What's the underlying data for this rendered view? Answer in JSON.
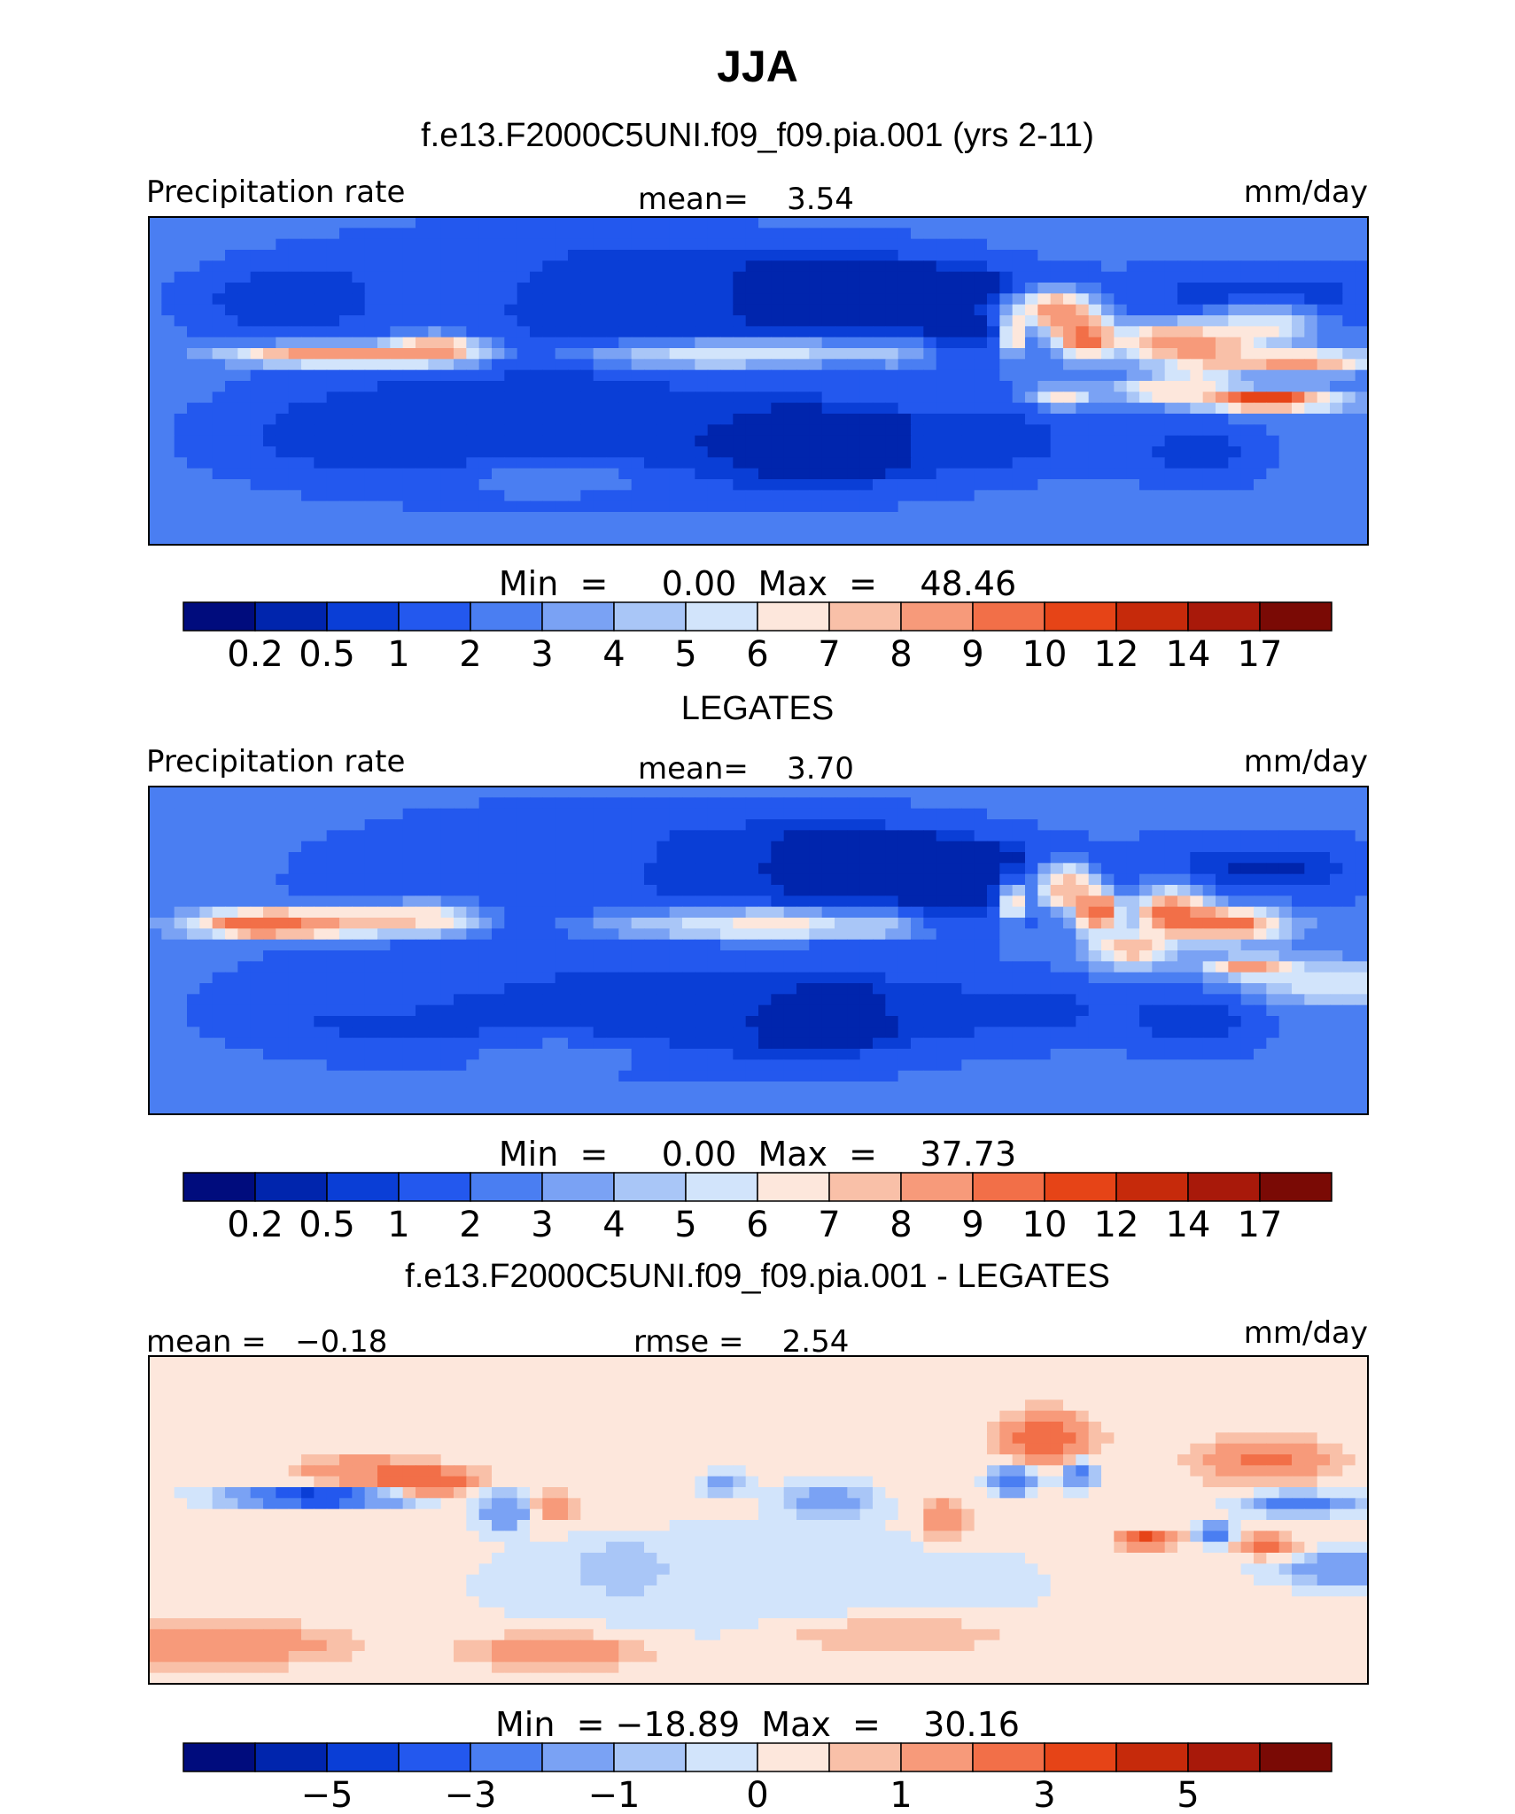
{
  "figure": {
    "title": "JJA",
    "subtitle": "f.e13.F2000C5UNI.f09_f09.pia.001 (yrs 2-11)"
  },
  "chart_data": [
    {
      "type": "heatmap",
      "panel_title": "",
      "left_label": "Precipitation rate",
      "center_label": "mean=    3.54",
      "units": "mm/day",
      "stats": "Min  =     0.00  Max  =    48.46",
      "levels": [
        "0.2",
        "0.5",
        "1",
        "2",
        "3",
        "4",
        "5",
        "6",
        "7",
        "8",
        "9",
        "10",
        "12",
        "14",
        "17"
      ],
      "colors": [
        "#000c7d",
        "#0025ad",
        "#0a3ed6",
        "#2358ee",
        "#4a7ef2",
        "#7aa2f4",
        "#a9c6f7",
        "#d2e4fb",
        "#fde7dc",
        "#f9c0a8",
        "#f79a7a",
        "#f26f48",
        "#e64417",
        "#c62a0b",
        "#a8190a",
        "#7a0a05"
      ],
      "fields": [
        {
          "v": 1.5,
          "lon": -80,
          "lat": 22,
          "sx": 70,
          "sy": 26
        },
        {
          "v": 0.3,
          "lon": -20,
          "lat": 22,
          "sx": 90,
          "sy": 20
        },
        {
          "v": 0.1,
          "lon": 30,
          "lat": 25,
          "sx": 40,
          "sy": 12
        },
        {
          "v": 0.4,
          "lon": 60,
          "lat": 22,
          "sx": 26,
          "sy": 10
        },
        {
          "v": 0.3,
          "lon": 150,
          "lat": 25,
          "sx": 40,
          "sy": 10
        },
        {
          "v": 0.6,
          "lon": -140,
          "lat": 25,
          "sx": 25,
          "sy": 10
        },
        {
          "v": 0.5,
          "lon": -40,
          "lat": -20,
          "sx": 100,
          "sy": 18
        },
        {
          "v": 0.3,
          "lon": 20,
          "lat": -20,
          "sx": 30,
          "sy": 12
        },
        {
          "v": 0.8,
          "lon": 70,
          "lat": -18,
          "sx": 25,
          "sy": 10
        },
        {
          "v": 0.5,
          "lon": 130,
          "lat": -22,
          "sx": 20,
          "sy": 10
        },
        {
          "v": 0.6,
          "lon": -110,
          "lat": -15,
          "sx": 40,
          "sy": 12
        },
        {
          "v": 10,
          "lon": -20,
          "lat": 8,
          "sx": 28,
          "sy": 3.5
        },
        {
          "v": 8,
          "lon": 10,
          "lat": 9,
          "sx": 25,
          "sy": 3.5
        },
        {
          "v": 6,
          "lon": 40,
          "lat": 9,
          "sx": 10,
          "sy": 4
        },
        {
          "v": 15,
          "lon": 85,
          "lat": 22,
          "sx": 10,
          "sy": 5
        },
        {
          "v": 13,
          "lon": 75,
          "lat": 15,
          "sx": 3,
          "sy": 6
        },
        {
          "v": 12,
          "lon": 95,
          "lat": 15,
          "sx": 8,
          "sy": 7
        },
        {
          "v": 10,
          "lon": 125,
          "lat": 12,
          "sx": 20,
          "sy": 6
        },
        {
          "v": 9,
          "lon": 150,
          "lat": 18,
          "sx": 14,
          "sy": 5
        },
        {
          "v": 14,
          "lon": -120,
          "lat": 8,
          "sx": 30,
          "sy": 3
        },
        {
          "v": 16,
          "lon": -95,
          "lat": 10,
          "sx": 12,
          "sy": 4
        },
        {
          "v": 9,
          "lon": 160,
          "lat": 6,
          "sx": 25,
          "sy": 3
        },
        {
          "v": 12,
          "lon": 150,
          "lat": -6,
          "sx": 20,
          "sy": 3
        },
        {
          "v": 7,
          "lon": 115,
          "lat": -3,
          "sx": 10,
          "sy": 3
        },
        {
          "v": 8,
          "lon": 90,
          "lat": -5,
          "sx": 8,
          "sy": 3
        },
        {
          "v": 6,
          "lon": 130,
          "lat": 0,
          "sx": 12,
          "sy": 5
        },
        {
          "v": 4,
          "lon": -60,
          "lat": -30,
          "sx": 30,
          "sy": 5
        }
      ]
    },
    {
      "type": "heatmap",
      "panel_title": "LEGATES",
      "left_label": "Precipitation rate",
      "center_label": "mean=    3.70",
      "units": "mm/day",
      "stats": "Min  =     0.00  Max  =    37.73",
      "levels": [
        "0.2",
        "0.5",
        "1",
        "2",
        "3",
        "4",
        "5",
        "6",
        "7",
        "8",
        "9",
        "10",
        "12",
        "14",
        "17"
      ],
      "colors": [
        "#000c7d",
        "#0025ad",
        "#0a3ed6",
        "#2358ee",
        "#4a7ef2",
        "#7aa2f4",
        "#a9c6f7",
        "#d2e4fb",
        "#fde7dc",
        "#f9c0a8",
        "#f79a7a",
        "#f26f48",
        "#e64417",
        "#c62a0b",
        "#a8190a",
        "#7a0a05"
      ],
      "fields": [
        {
          "v": 2.2,
          "lon": -80,
          "lat": 22,
          "sx": 70,
          "sy": 26
        },
        {
          "v": 0.3,
          "lon": -20,
          "lat": 22,
          "sx": 90,
          "sy": 20
        },
        {
          "v": 0.1,
          "lon": 30,
          "lat": 25,
          "sx": 40,
          "sy": 12
        },
        {
          "v": 0.5,
          "lon": 60,
          "lat": 22,
          "sx": 26,
          "sy": 10
        },
        {
          "v": 0.4,
          "lon": 150,
          "lat": 25,
          "sx": 40,
          "sy": 10
        },
        {
          "v": 0.6,
          "lon": -40,
          "lat": -20,
          "sx": 100,
          "sy": 18
        },
        {
          "v": 0.3,
          "lon": 20,
          "lat": -20,
          "sx": 30,
          "sy": 12
        },
        {
          "v": 1.0,
          "lon": 80,
          "lat": -18,
          "sx": 30,
          "sy": 10
        },
        {
          "v": 0.5,
          "lon": 130,
          "lat": -22,
          "sx": 20,
          "sy": 10
        },
        {
          "v": 1.2,
          "lon": -110,
          "lat": -15,
          "sx": 40,
          "sy": 12
        },
        {
          "v": 9,
          "lon": -20,
          "lat": 8,
          "sx": 28,
          "sy": 4
        },
        {
          "v": 11,
          "lon": 5,
          "lat": 8,
          "sx": 18,
          "sy": 4
        },
        {
          "v": 7,
          "lon": 35,
          "lat": 8,
          "sx": 12,
          "sy": 4
        },
        {
          "v": 13,
          "lon": 75,
          "lat": 15,
          "sx": 3,
          "sy": 5
        },
        {
          "v": 12,
          "lon": 90,
          "lat": 20,
          "sx": 8,
          "sy": 6
        },
        {
          "v": 12,
          "lon": 100,
          "lat": 12,
          "sx": 6,
          "sy": 6
        },
        {
          "v": 11,
          "lon": 122,
          "lat": 12,
          "sx": 10,
          "sy": 7
        },
        {
          "v": 10,
          "lon": 140,
          "lat": 8,
          "sx": 15,
          "sy": 5
        },
        {
          "v": 13,
          "lon": -145,
          "lat": 8,
          "sx": 20,
          "sy": 4
        },
        {
          "v": 12,
          "lon": -115,
          "lat": 9,
          "sx": 20,
          "sy": 4
        },
        {
          "v": 11,
          "lon": -95,
          "lat": 10,
          "sx": 12,
          "sy": 4
        },
        {
          "v": 9,
          "lon": 145,
          "lat": -5,
          "sx": 12,
          "sy": 3
        },
        {
          "v": 8,
          "lon": 110,
          "lat": 0,
          "sx": 12,
          "sy": 5
        },
        {
          "v": 6,
          "lon": 170,
          "lat": -10,
          "sx": 25,
          "sy": 6
        },
        {
          "v": 4,
          "lon": -60,
          "lat": -32,
          "sx": 25,
          "sy": 5
        }
      ]
    },
    {
      "type": "heatmap",
      "panel_title": "f.e13.F2000C5UNI.f09_f09.pia.001 - LEGATES",
      "left_label": "mean =   −0.18",
      "center_label": "rmse =    2.54",
      "units": "mm/day",
      "stats": "Min  = −18.89  Max  =    30.16",
      "levels": [
        "",
        "−5",
        "",
        "−3",
        "",
        "−1",
        "",
        "0",
        "",
        "1",
        "",
        "3",
        "",
        "5",
        ""
      ],
      "colors": [
        "#000c7d",
        "#0025ad",
        "#0a3ed6",
        "#2358ee",
        "#4a7ef2",
        "#7aa2f4",
        "#a9c6f7",
        "#d2e4fb",
        "#fde7dc",
        "#f9c0a8",
        "#f79a7a",
        "#f26f48",
        "#e64417",
        "#c62a0b",
        "#a8190a",
        "#7a0a05"
      ],
      "fields": [
        {
          "v": 0.2,
          "lon": -40,
          "lat": 20,
          "sx": 80,
          "sy": 20
        },
        {
          "v": -0.3,
          "lon": 0,
          "lat": -20,
          "sx": 90,
          "sy": 20
        },
        {
          "v": 3.2,
          "lon": 85,
          "lat": 25,
          "sx": 12,
          "sy": 7
        },
        {
          "v": 2.5,
          "lon": 150,
          "lat": 18,
          "sx": 18,
          "sy": 6
        },
        {
          "v": 4.5,
          "lon": -100,
          "lat": 12,
          "sx": 14,
          "sy": 4
        },
        {
          "v": 2.0,
          "lon": -120,
          "lat": 15,
          "sx": 15,
          "sy": 4
        },
        {
          "v": -5.5,
          "lon": -130,
          "lat": 7,
          "sx": 24,
          "sy": 2.8
        },
        {
          "v": -3.0,
          "lon": 160,
          "lat": 5,
          "sx": 15,
          "sy": 3
        },
        {
          "v": -3.2,
          "lon": 75,
          "lat": 12,
          "sx": 6,
          "sy": 4
        },
        {
          "v": -2.5,
          "lon": 95,
          "lat": 14,
          "sx": 5,
          "sy": 4
        },
        {
          "v": 4.0,
          "lon": 115,
          "lat": -6,
          "sx": 8,
          "sy": 2.5
        },
        {
          "v": 3.0,
          "lon": 150,
          "lat": -8,
          "sx": 8,
          "sy": 3
        },
        {
          "v": -3.0,
          "lon": 135,
          "lat": -4,
          "sx": 5,
          "sy": 3
        },
        {
          "v": -3.0,
          "lon": -75,
          "lat": 3,
          "sx": 6,
          "sy": 5
        },
        {
          "v": 3.0,
          "lon": -60,
          "lat": 4,
          "sx": 5,
          "sy": 4
        },
        {
          "v": -2.5,
          "lon": -10,
          "lat": 11,
          "sx": 5,
          "sy": 3
        },
        {
          "v": -2.0,
          "lon": 20,
          "lat": 6,
          "sx": 12,
          "sy": 5
        },
        {
          "v": 2.0,
          "lon": 55,
          "lat": 0,
          "sx": 6,
          "sy": 6
        },
        {
          "v": 2.0,
          "lon": -160,
          "lat": -38,
          "sx": 35,
          "sy": 6
        },
        {
          "v": 2.0,
          "lon": -60,
          "lat": -40,
          "sx": 25,
          "sy": 5
        },
        {
          "v": 1.5,
          "lon": 40,
          "lat": -35,
          "sx": 30,
          "sy": 5
        },
        {
          "v": -2.0,
          "lon": 175,
          "lat": -15,
          "sx": 20,
          "sy": 5
        },
        {
          "v": -1.5,
          "lon": -40,
          "lat": -15,
          "sx": 10,
          "sy": 6
        }
      ]
    }
  ]
}
